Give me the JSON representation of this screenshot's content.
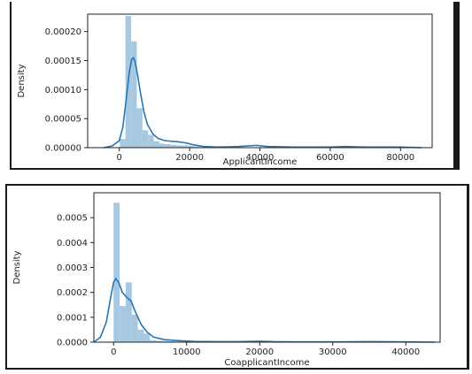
{
  "colors": {
    "bar": "#a6c8e0",
    "kde": "#2776b4",
    "axis": "#222222",
    "background": "#ffffff"
  },
  "chart_data": [
    {
      "type": "bar",
      "subtype": "histogram-with-kde",
      "xlabel": "ApplicantIncome",
      "ylabel": "Density",
      "xlim": [
        -9000,
        89000
      ],
      "ylim": [
        0,
        0.00023
      ],
      "grid": false,
      "xticks": [
        0,
        20000,
        40000,
        60000,
        80000
      ],
      "xtick_labels": [
        "0",
        "20000",
        "40000",
        "60000",
        "80000"
      ],
      "yticks": [
        0,
        5e-05,
        0.0001,
        0.00015,
        0.0002
      ],
      "ytick_labels": [
        "0.00000",
        "0.00005",
        "0.00010",
        "0.00015",
        "0.00020"
      ],
      "bins": [
        {
          "x0": 150,
          "x1": 1760,
          "density": 1.5e-05
        },
        {
          "x0": 1760,
          "x1": 3370,
          "density": 0.000227
        },
        {
          "x0": 3370,
          "x1": 4980,
          "density": 0.000183
        },
        {
          "x0": 4980,
          "x1": 6590,
          "density": 6.8e-05
        },
        {
          "x0": 6590,
          "x1": 8200,
          "density": 3e-05
        },
        {
          "x0": 8200,
          "x1": 9810,
          "density": 2.2e-05
        },
        {
          "x0": 9810,
          "x1": 11420,
          "density": 1.1e-05
        },
        {
          "x0": 11420,
          "x1": 13030,
          "density": 7e-06
        },
        {
          "x0": 13030,
          "x1": 14640,
          "density": 6e-06
        },
        {
          "x0": 14640,
          "x1": 16250,
          "density": 5e-06
        },
        {
          "x0": 16250,
          "x1": 17860,
          "density": 4e-06
        },
        {
          "x0": 17860,
          "x1": 19470,
          "density": 4e-06
        },
        {
          "x0": 19470,
          "x1": 21080,
          "density": 3e-06
        },
        {
          "x0": 21080,
          "x1": 22690,
          "density": 2e-06
        },
        {
          "x0": 22690,
          "x1": 24300,
          "density": 1e-06
        }
      ],
      "kde": [
        [
          -4500,
          0
        ],
        [
          -2000,
          3e-06
        ],
        [
          0,
          1.2e-05
        ],
        [
          1000,
          3.5e-05
        ],
        [
          2000,
          8.5e-05
        ],
        [
          2800,
          0.000128
        ],
        [
          3500,
          0.000152
        ],
        [
          4000,
          0.000155
        ],
        [
          4500,
          0.000148
        ],
        [
          5200,
          0.000125
        ],
        [
          6000,
          9.5e-05
        ],
        [
          7000,
          6.2e-05
        ],
        [
          8000,
          4e-05
        ],
        [
          9500,
          2.4e-05
        ],
        [
          11000,
          1.6e-05
        ],
        [
          13000,
          1.2e-05
        ],
        [
          15000,
          1.1e-05
        ],
        [
          17000,
          1e-05
        ],
        [
          19000,
          8e-06
        ],
        [
          21000,
          5e-06
        ],
        [
          24000,
          2e-06
        ],
        [
          28000,
          1e-06
        ],
        [
          34000,
          2e-06
        ],
        [
          39000,
          4e-06
        ],
        [
          42000,
          2e-06
        ],
        [
          50000,
          1e-06
        ],
        [
          60000,
          1e-06
        ],
        [
          64000,
          2e-06
        ],
        [
          70000,
          1e-06
        ],
        [
          80000,
          1e-06
        ],
        [
          86000,
          0
        ]
      ]
    },
    {
      "type": "bar",
      "subtype": "histogram-with-kde",
      "xlabel": "CoapplicantIncome",
      "ylabel": "Density",
      "xlim": [
        -2700,
        44700
      ],
      "ylim": [
        0,
        0.0006
      ],
      "grid": false,
      "xticks": [
        0,
        10000,
        20000,
        30000,
        40000
      ],
      "xtick_labels": [
        "0",
        "10000",
        "20000",
        "30000",
        "40000"
      ],
      "yticks": [
        0,
        0.0001,
        0.0002,
        0.0003,
        0.0004,
        0.0005
      ],
      "ytick_labels": [
        "0.0000",
        "0.0001",
        "0.0002",
        "0.0003",
        "0.0004",
        "0.0005"
      ],
      "bins": [
        {
          "x0": 0,
          "x1": 830,
          "density": 0.00056
        },
        {
          "x0": 830,
          "x1": 1660,
          "density": 0.000145
        },
        {
          "x0": 1660,
          "x1": 2490,
          "density": 0.00024
        },
        {
          "x0": 2490,
          "x1": 3320,
          "density": 0.00011
        },
        {
          "x0": 3320,
          "x1": 4150,
          "density": 5e-05
        },
        {
          "x0": 4150,
          "x1": 4980,
          "density": 3.5e-05
        },
        {
          "x0": 4980,
          "x1": 5810,
          "density": 8e-06
        },
        {
          "x0": 5810,
          "x1": 6640,
          "density": 6e-06
        },
        {
          "x0": 6640,
          "x1": 7470,
          "density": 5e-06
        },
        {
          "x0": 7470,
          "x1": 8300,
          "density": 4e-06
        },
        {
          "x0": 8300,
          "x1": 9130,
          "density": 3e-06
        }
      ],
      "kde": [
        [
          -2700,
          0
        ],
        [
          -1800,
          2e-05
        ],
        [
          -1000,
          8e-05
        ],
        [
          -400,
          0.00018
        ],
        [
          0,
          0.00024
        ],
        [
          300,
          0.000255
        ],
        [
          700,
          0.00024
        ],
        [
          1200,
          0.0002
        ],
        [
          1800,
          0.00018
        ],
        [
          2400,
          0.000165
        ],
        [
          3000,
          0.00012
        ],
        [
          3800,
          7e-05
        ],
        [
          4600,
          4e-05
        ],
        [
          5500,
          2e-05
        ],
        [
          7000,
          1e-05
        ],
        [
          9000,
          6e-06
        ],
        [
          11000,
          3e-06
        ],
        [
          14000,
          2e-06
        ],
        [
          17000,
          2e-06
        ],
        [
          20000,
          4e-06
        ],
        [
          22000,
          2e-06
        ],
        [
          25000,
          1e-06
        ],
        [
          30000,
          1e-06
        ],
        [
          35000,
          2e-06
        ],
        [
          40000,
          1e-06
        ],
        [
          44000,
          0
        ]
      ]
    }
  ]
}
